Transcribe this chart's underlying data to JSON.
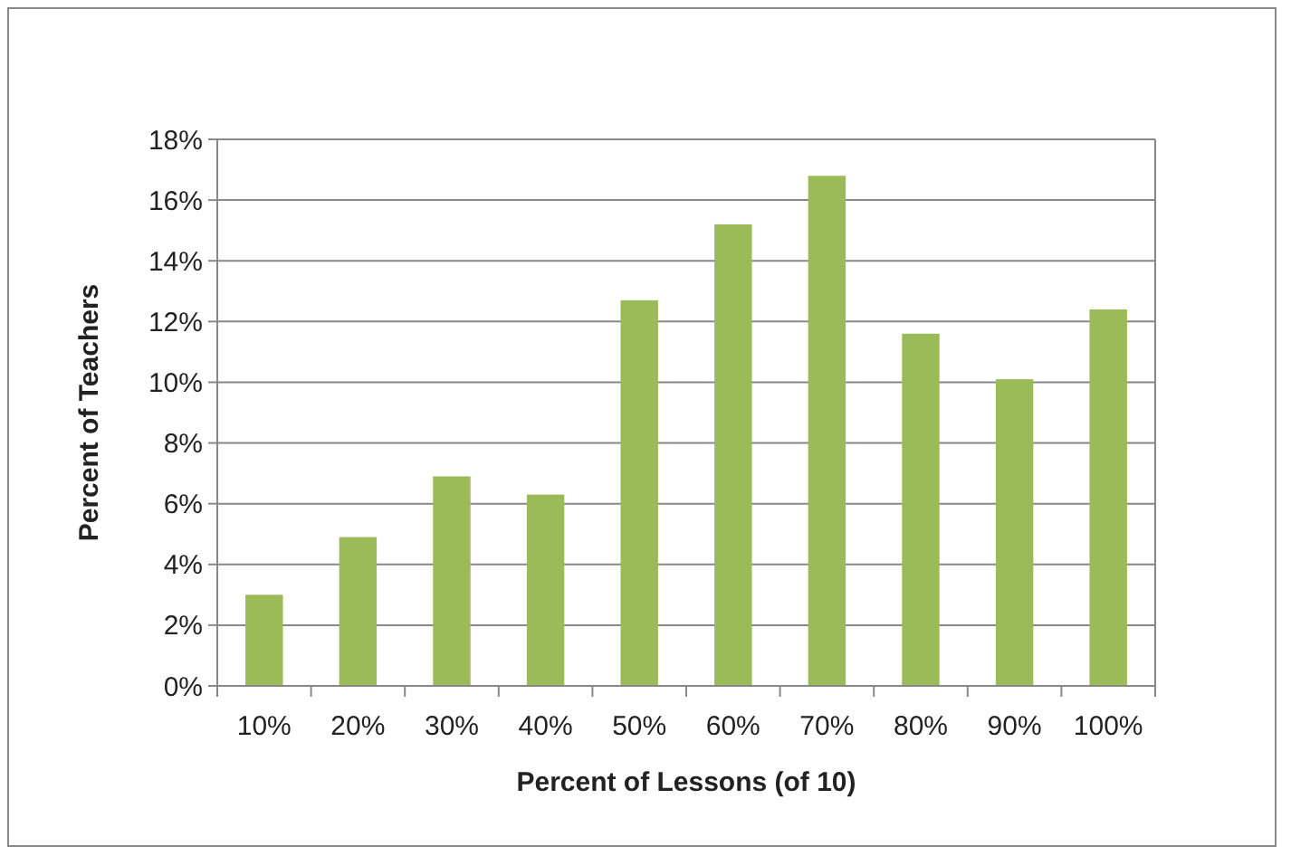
{
  "chart_data": {
    "type": "bar",
    "xlabel": "Percent of Lessons (of 10)",
    "ylabel": "Percent of Teachers",
    "categories": [
      "10%",
      "20%",
      "30%",
      "40%",
      "50%",
      "60%",
      "70%",
      "80%",
      "90%",
      "100%"
    ],
    "values": [
      3.0,
      4.9,
      6.9,
      6.3,
      12.7,
      15.2,
      16.8,
      11.6,
      10.1,
      12.4
    ],
    "color": "#9bbb59",
    "ylim": [
      0,
      18
    ],
    "yticks": [
      {
        "value": 0,
        "label": "0%"
      },
      {
        "value": 2,
        "label": "2%"
      },
      {
        "value": 4,
        "label": "4%"
      },
      {
        "value": 6,
        "label": "6%"
      },
      {
        "value": 8,
        "label": "8%"
      },
      {
        "value": 10,
        "label": "10%"
      },
      {
        "value": 12,
        "label": "12%"
      },
      {
        "value": 14,
        "label": "14%"
      },
      {
        "value": 16,
        "label": "16%"
      },
      {
        "value": 18,
        "label": "18%"
      }
    ],
    "grid": "y"
  }
}
